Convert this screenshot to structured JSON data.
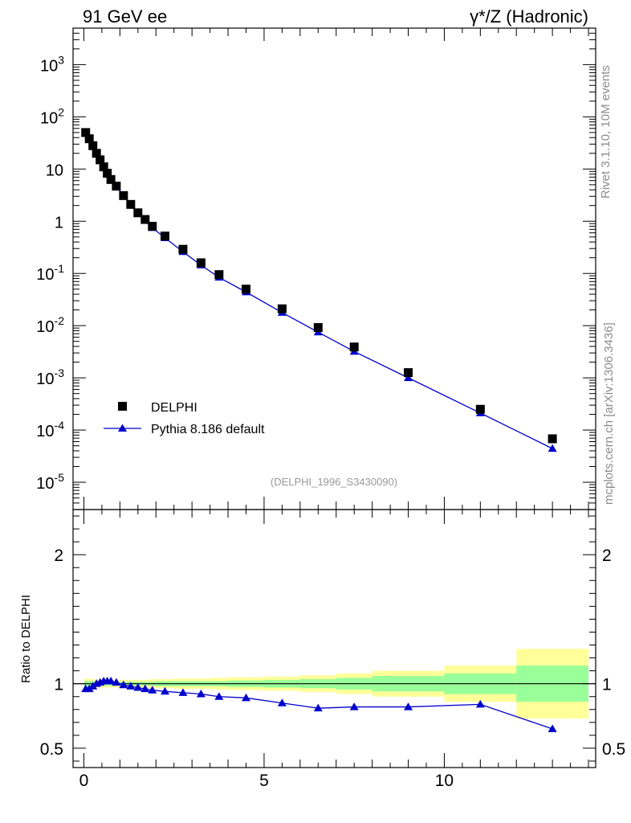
{
  "header": {
    "left_title": "91 GeV ee",
    "right_title": "γ*/Z (Hadronic)"
  },
  "side_text": {
    "top": "Rivet 3.1.10,  10M events",
    "bottom": "mcplots.cern.ch [arXiv:1306.3436]"
  },
  "analysis_id": "(DELPHI_1996_S3430090)",
  "colors": {
    "data": "#000000",
    "mc": "#0000cc",
    "band_inner": "#99ff99",
    "band_outer": "#ffff99"
  },
  "chart_data": [
    {
      "type": "scatter",
      "yscale": "log",
      "xlim": [
        -0.3,
        14.2
      ],
      "ylim": [
        3e-06,
        5000
      ],
      "y_tick_labels": [
        "10^-5",
        "10^-4",
        "10^-3",
        "10^-2",
        "10^-1",
        "1",
        "10",
        "10^2",
        "10^3"
      ],
      "legend_position": "bottom-left",
      "series": [
        {
          "name": "DELPHI",
          "style": "square-markers",
          "x": [
            0.05,
            0.15,
            0.25,
            0.35,
            0.45,
            0.55,
            0.65,
            0.75,
            0.9,
            1.1,
            1.3,
            1.5,
            1.7,
            1.9,
            2.25,
            2.75,
            3.25,
            3.75,
            4.5,
            5.5,
            6.5,
            7.5,
            9.0,
            11.0,
            13.0
          ],
          "y": [
            50,
            38,
            28,
            20,
            15,
            11,
            8.3,
            6.3,
            4.7,
            3.1,
            2.1,
            1.45,
            1.08,
            0.8,
            0.52,
            0.29,
            0.16,
            0.095,
            0.05,
            0.021,
            0.0092,
            0.0039,
            0.00126,
            0.00025,
            6.8e-05
          ]
        },
        {
          "name": "Pythia 8.186 default",
          "style": "triangle-line",
          "x": [
            0.05,
            0.15,
            0.25,
            0.35,
            0.45,
            0.55,
            0.65,
            0.75,
            0.9,
            1.1,
            1.3,
            1.5,
            1.7,
            1.9,
            2.25,
            2.75,
            3.25,
            3.75,
            4.5,
            5.5,
            6.5,
            7.5,
            9.0,
            11.0,
            13.0
          ],
          "y": [
            48,
            36.5,
            27.4,
            20.1,
            15.2,
            11.2,
            8.5,
            6.5,
            4.7,
            3.07,
            2.05,
            1.4,
            1.03,
            0.75,
            0.48,
            0.26,
            0.144,
            0.084,
            0.044,
            0.0178,
            0.0075,
            0.0032,
            0.001,
            0.000212,
            4.42e-05
          ]
        }
      ]
    },
    {
      "type": "line",
      "ylabel": "Ratio to DELPHI",
      "xlim": [
        -0.3,
        14.2
      ],
      "ylim": [
        0.35,
        2.35
      ],
      "x_tick_labels": [
        "0",
        "5",
        "10"
      ],
      "y_tick_labels": [
        "0.5",
        "1",
        "2"
      ],
      "reference_line": 1,
      "uncertainty_bands": [
        {
          "x_low": 0.0,
          "x_high": 0.1,
          "inner": 0.02,
          "outer": 0.04
        },
        {
          "x_low": 0.1,
          "x_high": 0.2,
          "inner": 0.02,
          "outer": 0.04
        },
        {
          "x_low": 0.2,
          "x_high": 0.3,
          "inner": 0.02,
          "outer": 0.035
        },
        {
          "x_low": 0.3,
          "x_high": 0.4,
          "inner": 0.015,
          "outer": 0.03
        },
        {
          "x_low": 0.4,
          "x_high": 0.5,
          "inner": 0.015,
          "outer": 0.03
        },
        {
          "x_low": 0.5,
          "x_high": 0.6,
          "inner": 0.015,
          "outer": 0.03
        },
        {
          "x_low": 0.6,
          "x_high": 0.7,
          "inner": 0.015,
          "outer": 0.03
        },
        {
          "x_low": 0.7,
          "x_high": 0.8,
          "inner": 0.015,
          "outer": 0.03
        },
        {
          "x_low": 0.8,
          "x_high": 1.0,
          "inner": 0.015,
          "outer": 0.03
        },
        {
          "x_low": 1.0,
          "x_high": 1.2,
          "inner": 0.015,
          "outer": 0.03
        },
        {
          "x_low": 1.2,
          "x_high": 1.4,
          "inner": 0.015,
          "outer": 0.03
        },
        {
          "x_low": 1.4,
          "x_high": 1.6,
          "inner": 0.015,
          "outer": 0.03
        },
        {
          "x_low": 1.6,
          "x_high": 1.8,
          "inner": 0.015,
          "outer": 0.03
        },
        {
          "x_low": 1.8,
          "x_high": 2.0,
          "inner": 0.015,
          "outer": 0.035
        },
        {
          "x_low": 2.0,
          "x_high": 2.5,
          "inner": 0.02,
          "outer": 0.035
        },
        {
          "x_low": 2.5,
          "x_high": 3.0,
          "inner": 0.02,
          "outer": 0.04
        },
        {
          "x_low": 3.0,
          "x_high": 3.5,
          "inner": 0.02,
          "outer": 0.04
        },
        {
          "x_low": 3.5,
          "x_high": 4.0,
          "inner": 0.02,
          "outer": 0.045
        },
        {
          "x_low": 4.0,
          "x_high": 5.0,
          "inner": 0.025,
          "outer": 0.05
        },
        {
          "x_low": 5.0,
          "x_high": 6.0,
          "inner": 0.03,
          "outer": 0.055
        },
        {
          "x_low": 6.0,
          "x_high": 7.0,
          "inner": 0.035,
          "outer": 0.065
        },
        {
          "x_low": 7.0,
          "x_high": 8.0,
          "inner": 0.045,
          "outer": 0.08
        },
        {
          "x_low": 8.0,
          "x_high": 10.0,
          "inner": 0.06,
          "outer": 0.1
        },
        {
          "x_low": 10.0,
          "x_high": 12.0,
          "inner": 0.08,
          "outer": 0.14
        },
        {
          "x_low": 12.0,
          "x_high": 14.0,
          "inner": 0.14,
          "outer": 0.27
        }
      ],
      "series": [
        {
          "name": "Pythia 8.186 default",
          "x": [
            0.05,
            0.15,
            0.25,
            0.35,
            0.45,
            0.55,
            0.65,
            0.75,
            0.9,
            1.1,
            1.3,
            1.5,
            1.7,
            1.9,
            2.25,
            2.75,
            3.25,
            3.75,
            4.5,
            5.5,
            6.5,
            7.5,
            9.0,
            11.0,
            13.0
          ],
          "y": [
            0.96,
            0.96,
            0.98,
            1.0,
            1.01,
            1.02,
            1.02,
            1.02,
            1.01,
            0.99,
            0.98,
            0.97,
            0.96,
            0.95,
            0.94,
            0.93,
            0.92,
            0.9,
            0.89,
            0.85,
            0.81,
            0.82,
            0.82,
            0.84,
            0.65
          ],
          "yerr": [
            0,
            0,
            0,
            0,
            0,
            0,
            0,
            0,
            0,
            0,
            0,
            0,
            0,
            0,
            0,
            0,
            0,
            0,
            0,
            0,
            0,
            0,
            0,
            0,
            0.02
          ]
        }
      ]
    }
  ]
}
